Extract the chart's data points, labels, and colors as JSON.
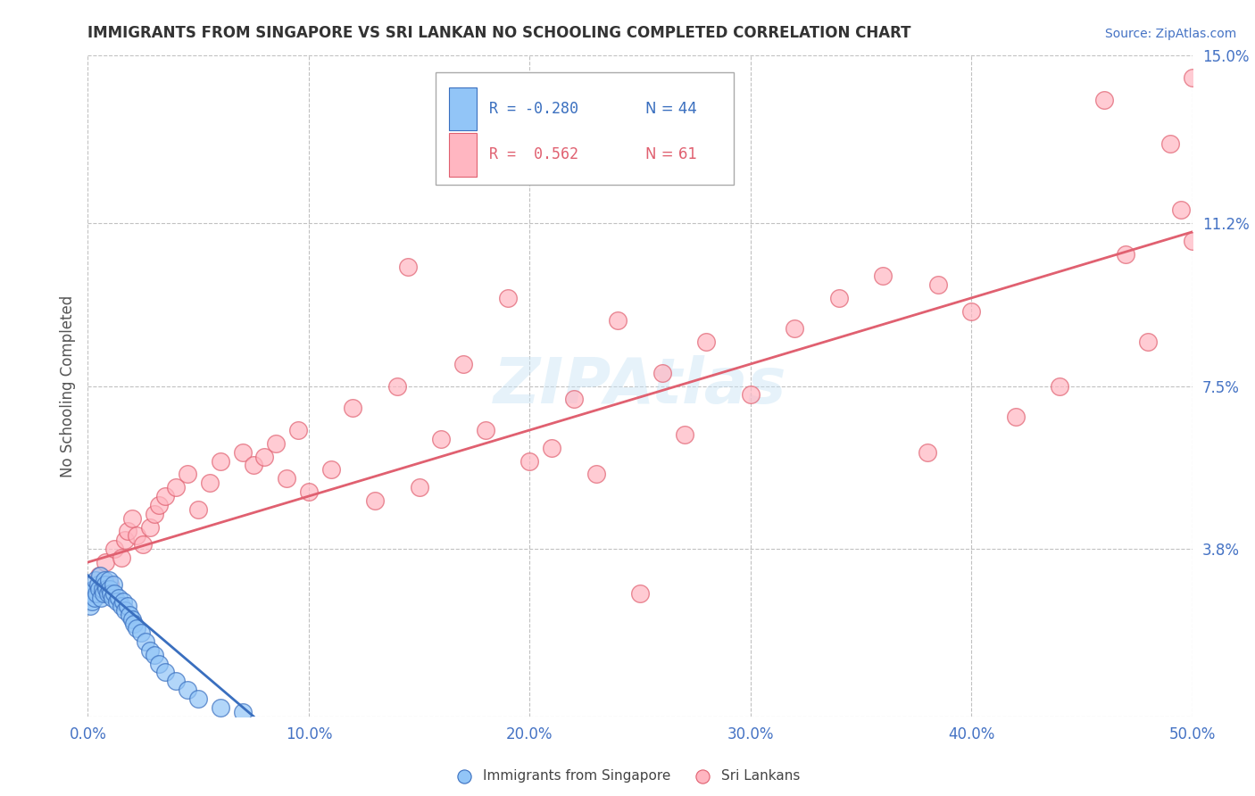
{
  "title": "IMMIGRANTS FROM SINGAPORE VS SRI LANKAN NO SCHOOLING COMPLETED CORRELATION CHART",
  "source": "Source: ZipAtlas.com",
  "ylabel": "No Schooling Completed",
  "xlim": [
    0.0,
    50.0
  ],
  "ylim": [
    0.0,
    15.0
  ],
  "xticks": [
    0.0,
    10.0,
    20.0,
    30.0,
    40.0,
    50.0
  ],
  "yticks": [
    0.0,
    3.8,
    7.5,
    11.2,
    15.0
  ],
  "xtick_labels": [
    "0.0%",
    "10.0%",
    "20.0%",
    "30.0%",
    "40.0%",
    "50.0%"
  ],
  "ytick_labels": [
    "",
    "3.8%",
    "7.5%",
    "11.2%",
    "15.0%"
  ],
  "legend_r1": "R = -0.280",
  "legend_n1": "N = 44",
  "legend_r2": "R =  0.562",
  "legend_n2": "N = 61",
  "blue_color": "#92c5f7",
  "pink_color": "#ffb6c1",
  "blue_line_color": "#3a6fbf",
  "pink_line_color": "#e06070",
  "title_color": "#333333",
  "axis_color": "#4472c4",
  "watermark": "ZIPAtlas",
  "singapore_x": [
    0.1,
    0.15,
    0.2,
    0.25,
    0.3,
    0.35,
    0.4,
    0.45,
    0.5,
    0.55,
    0.6,
    0.65,
    0.7,
    0.75,
    0.8,
    0.85,
    0.9,
    0.95,
    1.0,
    1.05,
    1.1,
    1.15,
    1.2,
    1.3,
    1.4,
    1.5,
    1.6,
    1.7,
    1.8,
    1.9,
    2.0,
    2.1,
    2.2,
    2.4,
    2.6,
    2.8,
    3.0,
    3.2,
    3.5,
    4.0,
    4.5,
    5.0,
    6.0,
    7.0
  ],
  "singapore_y": [
    2.5,
    2.8,
    2.6,
    2.9,
    2.7,
    3.1,
    2.8,
    3.0,
    2.9,
    3.2,
    2.7,
    2.9,
    2.8,
    3.1,
    3.0,
    2.9,
    2.8,
    3.1,
    2.9,
    2.8,
    2.7,
    3.0,
    2.8,
    2.6,
    2.7,
    2.5,
    2.6,
    2.4,
    2.5,
    2.3,
    2.2,
    2.1,
    2.0,
    1.9,
    1.7,
    1.5,
    1.4,
    1.2,
    1.0,
    0.8,
    0.6,
    0.4,
    0.2,
    0.1
  ],
  "srilanka_x": [
    0.5,
    0.8,
    1.0,
    1.2,
    1.5,
    1.7,
    1.8,
    2.0,
    2.2,
    2.5,
    2.8,
    3.0,
    3.2,
    3.5,
    4.0,
    4.5,
    5.0,
    5.5,
    6.0,
    7.0,
    7.5,
    8.0,
    8.5,
    9.0,
    9.5,
    10.0,
    11.0,
    12.0,
    13.0,
    14.0,
    15.0,
    16.0,
    17.0,
    18.0,
    19.0,
    20.0,
    21.0,
    22.0,
    23.0,
    24.0,
    25.0,
    26.0,
    27.0,
    28.0,
    30.0,
    32.0,
    34.0,
    36.0,
    38.0,
    40.0,
    42.0,
    44.0,
    46.0,
    47.0,
    48.0,
    49.0,
    49.5,
    50.0,
    50.0,
    14.5,
    38.5
  ],
  "srilanka_y": [
    3.2,
    3.5,
    3.0,
    3.8,
    3.6,
    4.0,
    4.2,
    4.5,
    4.1,
    3.9,
    4.3,
    4.6,
    4.8,
    5.0,
    5.2,
    5.5,
    4.7,
    5.3,
    5.8,
    6.0,
    5.7,
    5.9,
    6.2,
    5.4,
    6.5,
    5.1,
    5.6,
    7.0,
    4.9,
    7.5,
    5.2,
    6.3,
    8.0,
    6.5,
    9.5,
    5.8,
    6.1,
    7.2,
    5.5,
    9.0,
    2.8,
    7.8,
    6.4,
    8.5,
    7.3,
    8.8,
    9.5,
    10.0,
    6.0,
    9.2,
    6.8,
    7.5,
    14.0,
    10.5,
    8.5,
    13.0,
    11.5,
    10.8,
    14.5,
    10.2,
    9.8
  ],
  "sg_line_x": [
    0.0,
    7.5
  ],
  "sg_line_y_start": 3.2,
  "sg_line_y_end": 0.0,
  "sl_line_x": [
    0.0,
    50.0
  ],
  "sl_line_y_start": 3.5,
  "sl_line_y_end": 11.0
}
